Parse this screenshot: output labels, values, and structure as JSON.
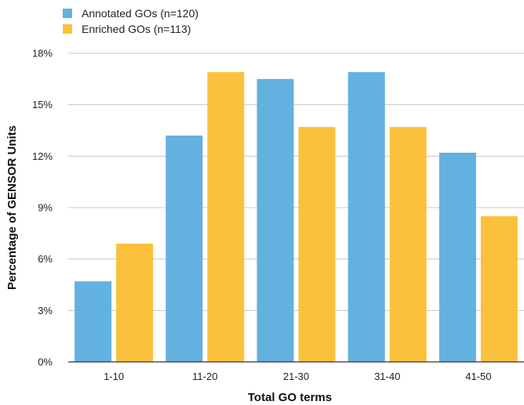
{
  "chart_data": {
    "type": "bar",
    "categories": [
      "1-10",
      "11-20",
      "21-30",
      "31-40",
      "41-50"
    ],
    "series": [
      {
        "name": "Annotated GOs (n=120)",
        "color": "#62B1DF",
        "values": [
          4.7,
          13.2,
          16.5,
          16.9,
          12.2
        ]
      },
      {
        "name": "Enriched GOs (n=113)",
        "color": "#FBC13C",
        "values": [
          6.9,
          16.9,
          13.7,
          13.7,
          8.5
        ]
      }
    ],
    "xlabel": "Total GO terms",
    "ylabel": "Percentage of GENSOR Units",
    "ylim": [
      0,
      18
    ],
    "yticks": [
      0,
      3,
      6,
      9,
      12,
      15,
      18
    ],
    "ytick_labels": [
      "0%",
      "3%",
      "6%",
      "9%",
      "12%",
      "15%",
      "18%"
    ],
    "grid": true,
    "legend_position": "top-left"
  }
}
